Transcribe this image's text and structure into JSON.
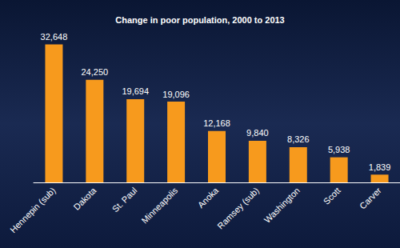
{
  "chart_data": {
    "type": "bar",
    "title": "Change in poor population, 2000 to 2013",
    "categories": [
      "Hennepin (sub)",
      "Dakota",
      "St. Paul",
      "Minneapolis",
      "Anoka",
      "Ramsey (sub)",
      "Washington",
      "Scott",
      "Carver"
    ],
    "values": [
      32648,
      24250,
      19694,
      19096,
      12168,
      9840,
      8326,
      5938,
      1839
    ],
    "value_labels": [
      "32,648",
      "24,250",
      "19,694",
      "19,096",
      "12,168",
      "9,840",
      "8,326",
      "5,938",
      "1,839"
    ],
    "color": "#f79a1d",
    "ylim": [
      0,
      35000
    ],
    "grid": false,
    "data_labels": true,
    "tick_labels": "x"
  }
}
